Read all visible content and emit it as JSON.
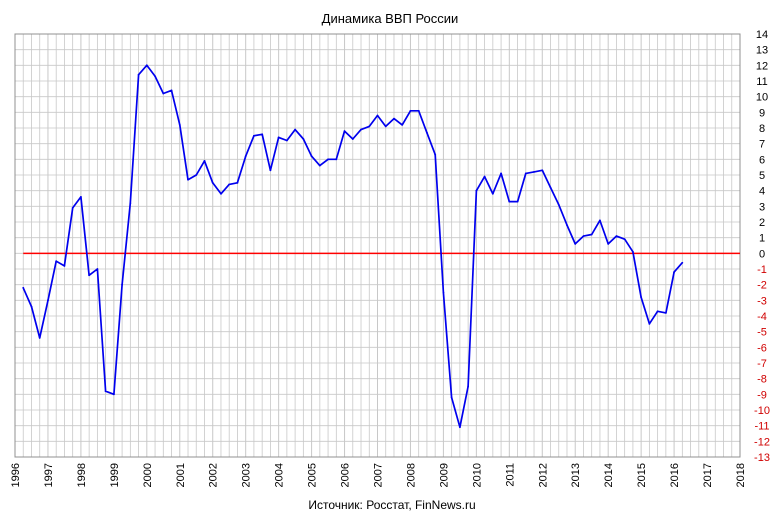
{
  "chart_data": {
    "type": "line",
    "title": "Динамика ВВП России",
    "source": "Источник: Росстат, FinNews.ru",
    "xlim": [
      1996,
      2018
    ],
    "ylim": [
      -13,
      14
    ],
    "x_ticks": [
      "1996",
      "1997",
      "1998",
      "1999",
      "2000",
      "2001",
      "2002",
      "2003",
      "2004",
      "2005",
      "2006",
      "2007",
      "2008",
      "2009",
      "2010",
      "2011",
      "2012",
      "2013",
      "2014",
      "2015",
      "2016",
      "2017",
      "2018"
    ],
    "y_ticks": [
      14,
      13,
      12,
      11,
      10,
      9,
      8,
      7,
      6,
      5,
      4,
      3,
      2,
      1,
      0,
      -1,
      -2,
      -3,
      -4,
      -5,
      -6,
      -7,
      -8,
      -9,
      -10,
      -11,
      -12,
      -13
    ],
    "grid": true,
    "reference_line": {
      "y": 0,
      "color": "#ff0000"
    },
    "colors": {
      "series": "#0000ee",
      "negative_ticks": "#d00000",
      "grid": "#c8c8c8"
    },
    "series": [
      {
        "x": [
          1996.25,
          1996.5,
          1996.75,
          1997.0,
          1997.25,
          1997.5,
          1997.75,
          1998.0,
          1998.25,
          1998.5,
          1998.75,
          1999.0,
          1999.25,
          1999.5,
          1999.75,
          2000.0,
          2000.25,
          2000.5,
          2000.75,
          2001.0,
          2001.25,
          2001.5,
          2001.75,
          2002.0,
          2002.25,
          2002.5,
          2002.75,
          2003.0,
          2003.25,
          2003.5,
          2003.75,
          2004.0,
          2004.25,
          2004.5,
          2004.75,
          2005.0,
          2005.25,
          2005.5,
          2005.75,
          2006.0,
          2006.25,
          2006.5,
          2006.75,
          2007.0,
          2007.25,
          2007.5,
          2007.75,
          2008.0,
          2008.25,
          2008.5,
          2008.75,
          2009.0,
          2009.25,
          2009.5,
          2009.75,
          2010.0,
          2010.25,
          2010.5,
          2010.75,
          2011.0,
          2011.25,
          2011.5,
          2011.75,
          2012.0,
          2012.25,
          2012.5,
          2012.75,
          2013.0,
          2013.25,
          2013.5,
          2013.75,
          2014.0,
          2014.25,
          2014.5,
          2014.75,
          2015.0,
          2015.25,
          2015.5,
          2015.75,
          2016.0,
          2016.25
        ],
        "y": [
          -2.2,
          -3.4,
          -5.4,
          -3.0,
          -0.5,
          -0.8,
          2.9,
          3.6,
          -1.4,
          -1.0,
          -8.8,
          -9.0,
          -2.0,
          3.2,
          11.4,
          12.0,
          11.3,
          10.2,
          10.4,
          8.2,
          4.7,
          5.0,
          5.9,
          4.5,
          3.8,
          4.4,
          4.5,
          6.2,
          7.5,
          7.6,
          5.3,
          7.4,
          7.2,
          7.9,
          7.3,
          6.2,
          5.6,
          6.0,
          6.0,
          7.8,
          7.3,
          7.9,
          8.1,
          8.8,
          8.1,
          8.6,
          8.2,
          9.1,
          9.1,
          7.7,
          6.3,
          -2.5,
          -9.2,
          -11.1,
          -8.5,
          4.0,
          4.9,
          3.8,
          5.1,
          3.3,
          3.3,
          5.1,
          5.2,
          5.3,
          4.2,
          3.1,
          1.8,
          0.6,
          1.1,
          1.2,
          2.1,
          0.6,
          1.1,
          0.9,
          0.1,
          -2.8,
          -4.5,
          -3.7,
          -3.8,
          -1.2,
          -0.6
        ]
      }
    ]
  }
}
